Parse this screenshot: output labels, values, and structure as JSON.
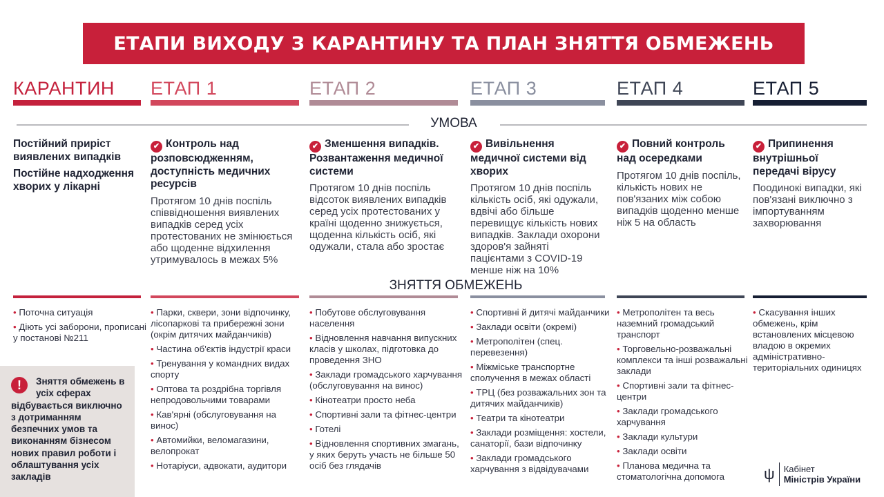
{
  "title": "ЕТАПИ ВИХОДУ З КАРАНТИНУ ТА ПЛАН ЗНЯТТЯ ОБМЕЖЕНЬ",
  "colors": {
    "accent": "#c8203a",
    "quarantine": "#c4213c",
    "stage1": "#d2475c",
    "stage2": "#b08b96",
    "stage3": "#8a8f9f",
    "stage4": "#3f4656",
    "stage5": "#161e33"
  },
  "sections": {
    "conditions": "УМОВА",
    "restrictions": "ЗНЯТТЯ ОБМЕЖЕНЬ"
  },
  "stages": [
    {
      "label": "КАРАНТИН",
      "heading": "Постійний приріст виявлених випадків",
      "heading2": "Постійне надходження хворих у лікарні",
      "text": "",
      "icon": "none",
      "items": [
        "Поточна ситуація",
        "Діють усі заборони, прописані у постанові №211"
      ]
    },
    {
      "label": "ЕТАП 1",
      "heading": "Контроль над розповсюдженням, доступність медичних ресурсів",
      "text": "Протягом 10 днів поспіль співвідношення виявлених випадків серед усіх протестованих не змінюється або щоденне відхилення утримувалось в межах 5%",
      "icon": "check-circle",
      "items": [
        "Парки, сквери, зони відпочинку, лісопаркові та прибережні зони (окрім дитячих майданчиків)",
        "Частина об'єктів індустрії краси",
        "Тренування у командних видах спорту",
        "Оптова та роздрібна торгівля непродовольчими товарами",
        "Кав'ярні (обслуговування на винос)",
        "Автомийки, веломагазини, велопрокат",
        "Нотаріуси, адвокати, аудитори"
      ]
    },
    {
      "label": "ЕТАП 2",
      "heading": "Зменшення випадків. Розвантаження медичної системи",
      "text": "Протягом 10 днів поспіль відсоток виявлених випадків серед усіх протестованих у країні щоденно знижується, щоденна кількість осіб, які одужали, стала або зростає",
      "icon": "check-circle",
      "items": [
        "Побутове обслуговування населення",
        "Відновлення навчання випускних класів у школах, підготовка до проведення ЗНО",
        "Заклади громадського харчування (обслуговування на винос)",
        "Кінотеатри просто неба",
        "Спортивні зали та фітнес-центри",
        "Готелі",
        "Відновлення спортивних змагань, у яких беруть участь не більше 50 осіб без глядачів"
      ]
    },
    {
      "label": "ЕТАП 3",
      "heading": "Вивільнення медичної системи від хворих",
      "text": "Протягом 10 днів поспіль кількість осіб, які одужали, вдвічі або більше перевищує кількість нових випадків. Заклади охорони здоров'я зайняті пацієнтами з COVID-19 менше ніж на 10%",
      "icon": "check-circle",
      "items": [
        "Спортивні й дитячі майданчики",
        "Заклади освіти (окремі)",
        "Метрополітен (спец. перевезення)",
        "Міжміське транспортне сполучення в межах області",
        "ТРЦ (без розважальних зон та дитячих майданчиків)",
        "Театри та кінотеатри",
        "Заклади розміщення: хостели, санаторії, бази відпочинку",
        "Заклади громадського харчування з відвідувачами"
      ]
    },
    {
      "label": "ЕТАП 4",
      "heading": "Повний контроль над осередками",
      "text": "Протягом 10 днів поспіль, кількість нових не пов'язаних між собою випадків щоденно менше ніж 5 на область",
      "icon": "check-circle",
      "items": [
        "Метрополітен та весь наземний громадський транспорт",
        "Торговельно-розважальні комплекси та інші розважальні заклади",
        "Спортивні зали та фітнес-центри",
        "Заклади громадського харчування",
        "Заклади культури",
        "Заклади освіти",
        "Планова медична та стоматологічна допомога"
      ]
    },
    {
      "label": "ЕТАП 5",
      "heading": "Припинення внутрішньої передачі вірусу",
      "text": "Поодинокі випадки, які пов'язані виключно з імпортуванням захворювання",
      "icon": "check-circle",
      "items": [
        "Скасування інших обмежень, крім встановлених місцевою владою в окремих адміністративно-територіальних одиницях"
      ]
    }
  ],
  "note": "Зняття обмежень в усіх сферах відбувається виключно з дотриманням безпечних умов та виконанням бізнесом нових правил роботи і облаштування усіх закладів",
  "logo": {
    "line1": "Кабінет",
    "line2": "Міністрів України"
  }
}
